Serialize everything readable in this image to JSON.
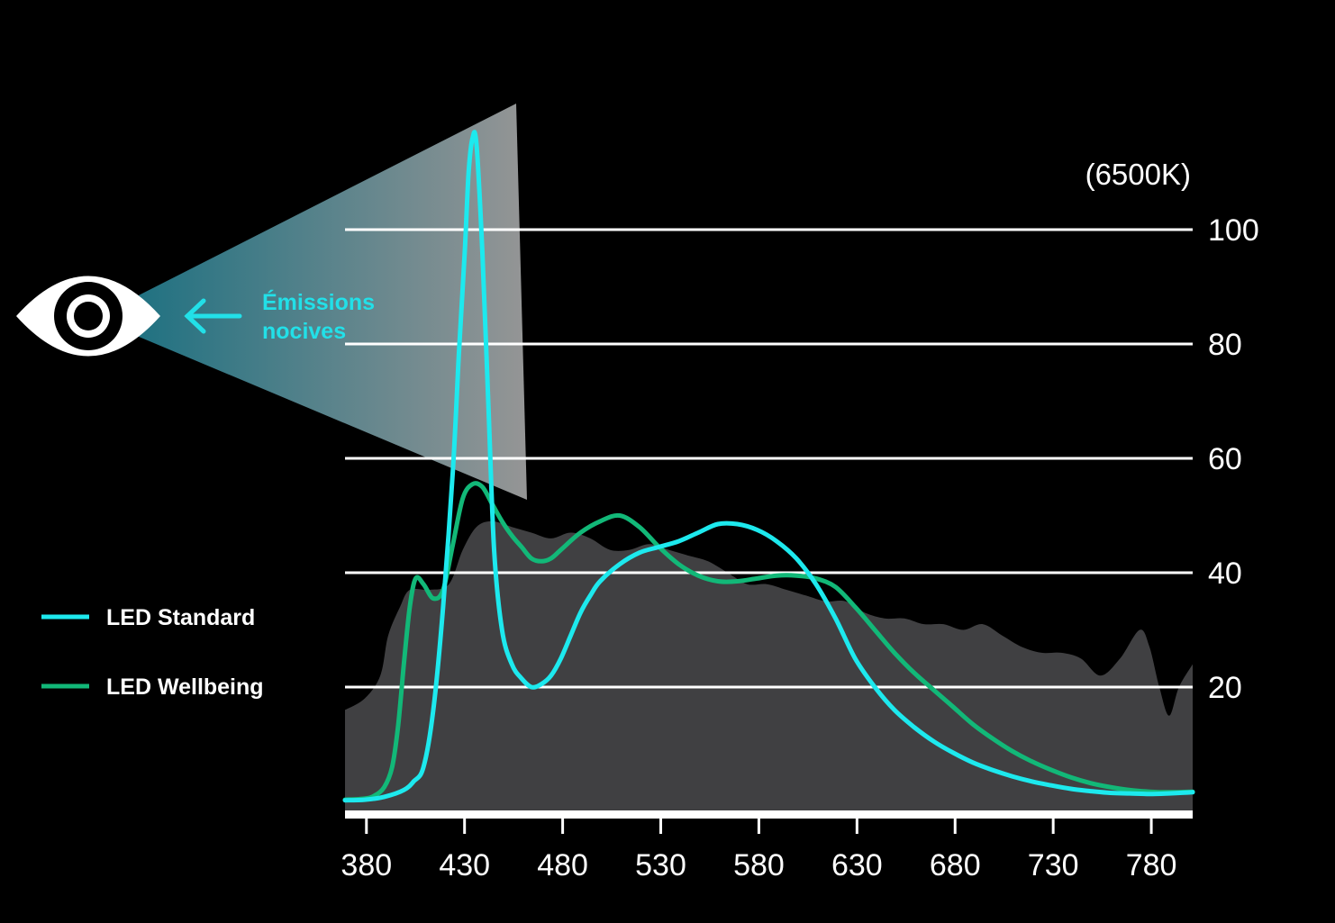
{
  "chart_data": {
    "type": "line",
    "title": "",
    "unit_label": "(6500K)",
    "xlabel": "",
    "ylabel": "",
    "x_ticks": [
      380,
      430,
      480,
      530,
      580,
      630,
      680,
      730,
      780
    ],
    "y_ticks": [
      20,
      40,
      60,
      80,
      100
    ],
    "xlim": [
      370,
      802
    ],
    "ylim": [
      0,
      100
    ],
    "grid": true,
    "legend_position": "left",
    "annotation": {
      "line1": "Émissions",
      "line2": "nocives"
    },
    "colors": {
      "standard": "#1de9ee",
      "wellbeing": "#12b878",
      "background_area": "#404042",
      "grid": "#ffffff"
    },
    "background_area": {
      "x": [
        370,
        380,
        388,
        392,
        398,
        403,
        413,
        423,
        430,
        437,
        445,
        455,
        465,
        475,
        485,
        495,
        505,
        515,
        525,
        535,
        545,
        555,
        565,
        575,
        585,
        595,
        605,
        615,
        625,
        635,
        645,
        655,
        665,
        675,
        685,
        695,
        705,
        715,
        725,
        735,
        745,
        755,
        765,
        775,
        780,
        785,
        790,
        795,
        802
      ],
      "y": [
        16,
        18,
        22,
        29,
        34,
        37,
        37,
        38,
        44,
        48,
        49,
        48,
        47,
        46,
        47,
        46,
        44,
        44,
        45,
        44,
        43,
        42,
        40,
        38,
        38,
        37,
        36,
        35,
        35,
        33,
        32,
        32,
        31,
        31,
        30,
        31,
        29,
        27,
        26,
        26,
        25,
        22,
        25,
        30,
        27,
        20,
        15,
        20,
        24
      ]
    },
    "series": [
      {
        "name": "LED Standard",
        "x": [
          370,
          380,
          390,
          400,
          405,
          410,
          415,
          420,
          425,
          428,
          431,
          433,
          435,
          437,
          440,
          443,
          446,
          450,
          455,
          460,
          465,
          470,
          475,
          480,
          485,
          490,
          495,
          500,
          510,
          520,
          530,
          540,
          550,
          560,
          570,
          580,
          590,
          600,
          610,
          620,
          630,
          640,
          650,
          660,
          670,
          680,
          690,
          700,
          710,
          720,
          730,
          740,
          750,
          760,
          770,
          780,
          790,
          802
        ],
        "y": [
          0.2,
          0.3,
          0.8,
          2,
          3.5,
          6,
          16,
          34,
          58,
          78,
          96,
          110,
          116,
          115,
          96,
          70,
          44,
          30,
          24,
          21.5,
          20,
          20.5,
          22,
          25,
          29,
          33,
          36,
          38.5,
          41.5,
          43.5,
          44.5,
          45.5,
          47,
          48.5,
          48.5,
          47.5,
          45.5,
          42.5,
          38,
          32,
          25,
          20,
          16,
          13,
          10.5,
          8.5,
          6.8,
          5.5,
          4.4,
          3.5,
          2.8,
          2.2,
          1.8,
          1.5,
          1.4,
          1.3,
          1.4,
          1.6
        ]
      },
      {
        "name": "LED Wellbeing",
        "x": [
          370,
          380,
          385,
          390,
          394,
          397,
          400,
          403,
          406,
          410,
          415,
          420,
          425,
          430,
          435,
          440,
          445,
          450,
          455,
          460,
          465,
          470,
          475,
          480,
          490,
          500,
          510,
          520,
          530,
          540,
          550,
          560,
          570,
          580,
          590,
          600,
          610,
          620,
          630,
          640,
          650,
          660,
          670,
          680,
          690,
          700,
          710,
          720,
          730,
          740,
          750,
          760,
          770,
          780,
          790,
          802
        ],
        "y": [
          0.3,
          0.5,
          1,
          2.5,
          6,
          13,
          24,
          34,
          39,
          38,
          35.5,
          37,
          45,
          53,
          55.5,
          55,
          52,
          49,
          46.5,
          44.5,
          42.5,
          42,
          42.5,
          44,
          47,
          49,
          50,
          48,
          44.5,
          41.5,
          39.5,
          38.5,
          38.5,
          39,
          39.5,
          39.5,
          39,
          37.5,
          34,
          30,
          26,
          22.5,
          19.5,
          16.5,
          13.5,
          11,
          8.8,
          7,
          5.5,
          4.2,
          3.2,
          2.5,
          2,
          1.7,
          1.6,
          1.7
        ]
      }
    ]
  }
}
